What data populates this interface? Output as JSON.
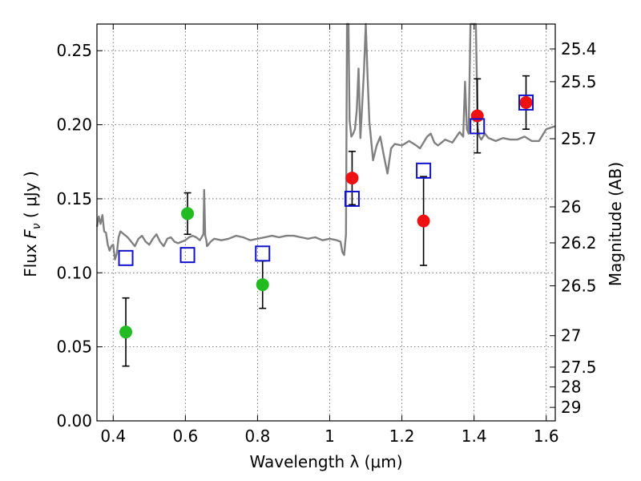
{
  "chart_data": {
    "type": "scatter",
    "xlabel": "Wavelength  λ (μm)",
    "ylabel": "Flux  F_ν  ( μJy )",
    "ylabel_parts": {
      "prefix": "Flux  ",
      "symbol": "F",
      "subscript": "ν",
      "suffix": "  (  μJy )"
    },
    "y2label": "Magnitude (AB)",
    "xlim": [
      0.355,
      1.625
    ],
    "ylim": [
      0.0,
      0.268
    ],
    "grid": true,
    "x_ticks": [
      0.4,
      0.6,
      0.8,
      1.0,
      1.2,
      1.4,
      1.6
    ],
    "x_tick_labels": [
      "0.4",
      "0.6",
      "0.8",
      "1",
      "1.2",
      "1.4",
      "1.6"
    ],
    "y_ticks": [
      0.0,
      0.05,
      0.1,
      0.15,
      0.2,
      0.25
    ],
    "y_tick_labels": [
      "0.00",
      "0.05",
      "0.10",
      "0.15",
      "0.20",
      "0.25"
    ],
    "mag_ticks": [
      25.4,
      25.5,
      25.7,
      26,
      26.2,
      26.5,
      27,
      27.5,
      28,
      29
    ],
    "mag_tick_labels": [
      "25.4",
      "25.5",
      "25.7",
      "26",
      "26.2",
      "26.5",
      "27",
      "27.5",
      "28",
      "29"
    ],
    "mag_zero_point": 23.9,
    "series": [
      {
        "name": "observed-green",
        "color": "#22bb22",
        "marker": "circle",
        "points": [
          {
            "x": 0.435,
            "y": 0.06,
            "err": 0.023
          },
          {
            "x": 0.606,
            "y": 0.14,
            "err": 0.014
          },
          {
            "x": 0.814,
            "y": 0.092,
            "err": 0.016
          }
        ]
      },
      {
        "name": "observed-red",
        "color": "#ee1111",
        "marker": "circle",
        "points": [
          {
            "x": 1.062,
            "y": 0.164,
            "err": 0.018
          },
          {
            "x": 1.26,
            "y": 0.135,
            "err": 0.03
          },
          {
            "x": 1.409,
            "y": 0.206,
            "err": 0.025
          },
          {
            "x": 1.544,
            "y": 0.215,
            "err": 0.018
          }
        ]
      },
      {
        "name": "model-photometry",
        "color": "#1111cc",
        "marker": "open-square",
        "points": [
          {
            "x": 0.435,
            "y": 0.11
          },
          {
            "x": 0.606,
            "y": 0.112
          },
          {
            "x": 0.814,
            "y": 0.113
          },
          {
            "x": 1.062,
            "y": 0.15
          },
          {
            "x": 1.26,
            "y": 0.169
          },
          {
            "x": 1.409,
            "y": 0.199
          },
          {
            "x": 1.544,
            "y": 0.215
          }
        ]
      }
    ],
    "model_spectrum": {
      "name": "model-sed",
      "color": "#808080",
      "x": [
        0.355,
        0.36,
        0.365,
        0.37,
        0.375,
        0.38,
        0.385,
        0.39,
        0.395,
        0.4,
        0.405,
        0.41,
        0.415,
        0.42,
        0.43,
        0.44,
        0.45,
        0.46,
        0.47,
        0.48,
        0.49,
        0.5,
        0.51,
        0.52,
        0.53,
        0.54,
        0.55,
        0.56,
        0.57,
        0.58,
        0.59,
        0.6,
        0.61,
        0.62,
        0.63,
        0.64,
        0.65,
        0.652,
        0.655,
        0.658,
        0.66,
        0.67,
        0.68,
        0.7,
        0.72,
        0.74,
        0.76,
        0.78,
        0.8,
        0.82,
        0.84,
        0.86,
        0.88,
        0.9,
        0.92,
        0.94,
        0.96,
        0.98,
        1.0,
        1.02,
        1.03,
        1.035,
        1.04,
        1.045,
        1.048,
        1.052,
        1.055,
        1.06,
        1.065,
        1.07,
        1.075,
        1.08,
        1.085,
        1.09,
        1.095,
        1.1,
        1.105,
        1.11,
        1.12,
        1.13,
        1.14,
        1.15,
        1.16,
        1.17,
        1.18,
        1.2,
        1.22,
        1.24,
        1.25,
        1.26,
        1.27,
        1.28,
        1.29,
        1.3,
        1.32,
        1.34,
        1.36,
        1.37,
        1.375,
        1.38,
        1.385,
        1.39,
        1.4,
        1.405,
        1.41,
        1.415,
        1.42,
        1.43,
        1.44,
        1.46,
        1.48,
        1.5,
        1.52,
        1.54,
        1.56,
        1.58,
        1.6,
        1.625
      ],
      "y": [
        0.131,
        0.138,
        0.133,
        0.139,
        0.128,
        0.127,
        0.119,
        0.115,
        0.118,
        0.119,
        0.109,
        0.113,
        0.124,
        0.128,
        0.126,
        0.124,
        0.121,
        0.118,
        0.123,
        0.125,
        0.121,
        0.119,
        0.123,
        0.126,
        0.121,
        0.118,
        0.123,
        0.124,
        0.121,
        0.12,
        0.121,
        0.122,
        0.124,
        0.125,
        0.124,
        0.122,
        0.126,
        0.156,
        0.125,
        0.122,
        0.118,
        0.121,
        0.123,
        0.122,
        0.123,
        0.125,
        0.124,
        0.122,
        0.123,
        0.124,
        0.125,
        0.124,
        0.125,
        0.125,
        0.124,
        0.123,
        0.124,
        0.122,
        0.123,
        0.122,
        0.121,
        0.114,
        0.112,
        0.126,
        0.268,
        0.268,
        0.203,
        0.192,
        0.194,
        0.197,
        0.21,
        0.238,
        0.191,
        0.213,
        0.237,
        0.268,
        0.232,
        0.202,
        0.176,
        0.186,
        0.192,
        0.179,
        0.167,
        0.184,
        0.187,
        0.186,
        0.189,
        0.186,
        0.184,
        0.188,
        0.192,
        0.194,
        0.188,
        0.186,
        0.19,
        0.188,
        0.195,
        0.192,
        0.229,
        0.197,
        0.194,
        0.268,
        0.268,
        0.268,
        0.198,
        0.192,
        0.19,
        0.194,
        0.191,
        0.189,
        0.191,
        0.19,
        0.19,
        0.192,
        0.189,
        0.189,
        0.197,
        0.199
      ]
    }
  }
}
